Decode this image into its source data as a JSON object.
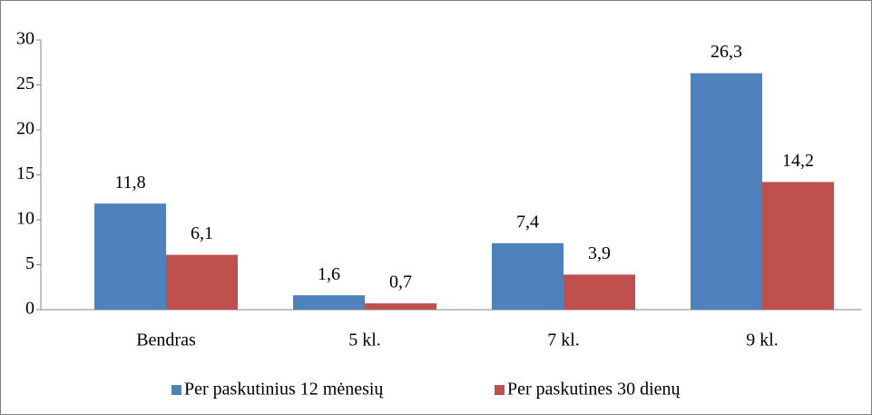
{
  "chart_data": {
    "type": "bar",
    "categories": [
      "Bendras",
      "5 kl.",
      "7 kl.",
      "9 kl."
    ],
    "series": [
      {
        "name": "Per paskutinius 12 mėnesių",
        "color": "#4f81bd",
        "values": [
          11.8,
          1.6,
          7.4,
          26.3
        ],
        "value_labels": [
          "11,8",
          "1,6",
          "7,4",
          "26,3"
        ]
      },
      {
        "name": "Per paskutines 30 dienų",
        "color": "#c0504d",
        "values": [
          6.1,
          0.7,
          3.9,
          14.2
        ],
        "value_labels": [
          "6,1",
          "0,7",
          "3,9",
          "14,2"
        ]
      }
    ],
    "ylim": [
      0,
      30
    ],
    "yticks": [
      0,
      5,
      10,
      15,
      20,
      25,
      30
    ],
    "grid": false,
    "legend": "bottom"
  }
}
